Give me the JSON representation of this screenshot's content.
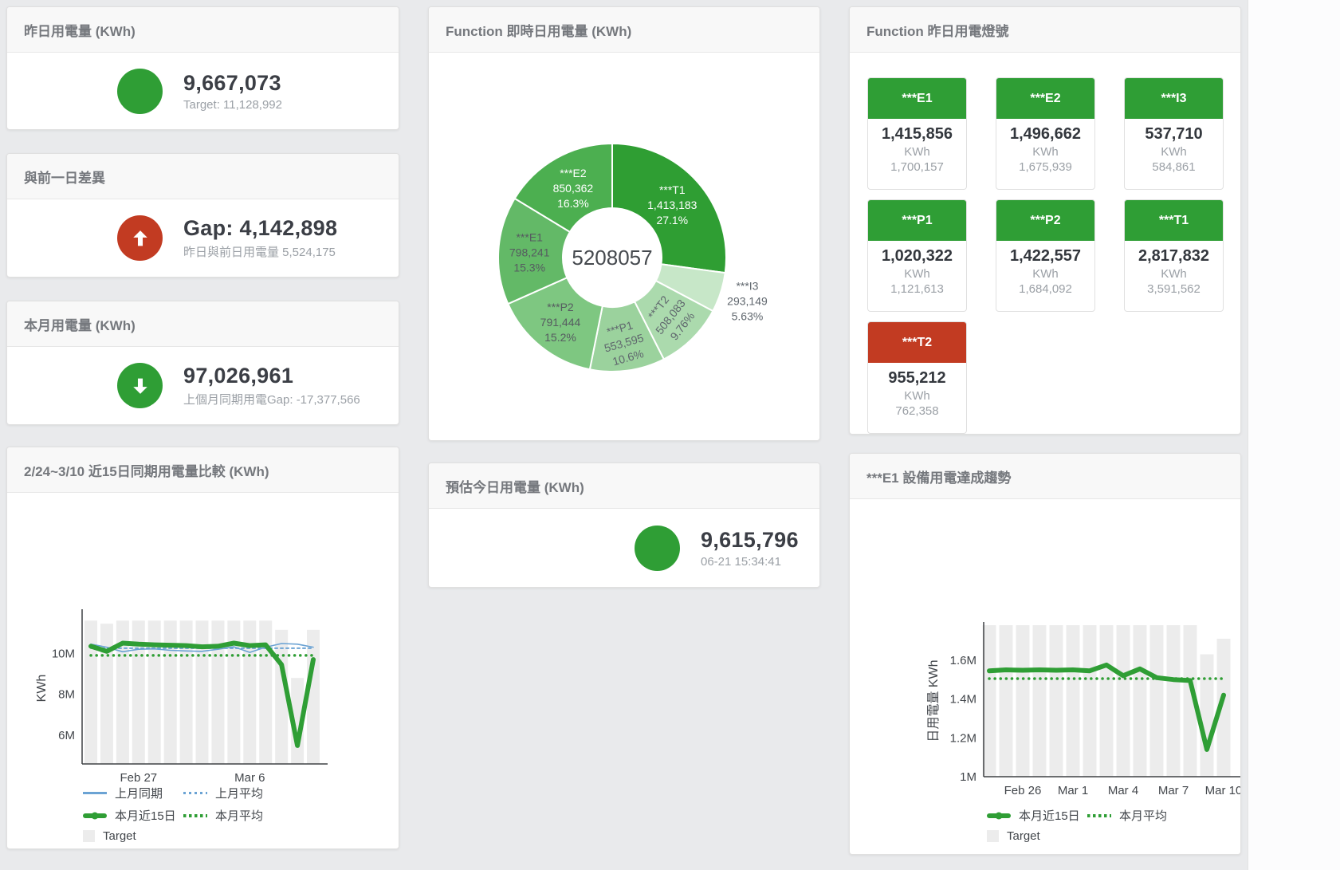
{
  "colors": {
    "green": "#2f9e35",
    "red": "#c23b22",
    "blue": "#6ba3d4",
    "target_bar": "#ececec"
  },
  "cards": {
    "yesterday": {
      "title": "昨日用電量 (KWh)",
      "value": "9,667,073",
      "sub": "Target: 11,128,992"
    },
    "day_gap": {
      "title": "與前一日差異",
      "value": "Gap: 4,142,898",
      "sub": "昨日與前日用電量 5,524,175"
    },
    "month": {
      "title": "本月用電量 (KWh)",
      "value": "97,026,961",
      "sub": "上個月同期用電Gap: -17,377,566"
    },
    "estimate": {
      "title": "預估今日用電量 (KWh)",
      "value": "9,615,796",
      "sub": "06-21 15:34:41"
    },
    "realtime_donut": {
      "title": "Function 即時日用電量 (KWh)"
    },
    "lights": {
      "title": "Function 昨日用電燈號"
    },
    "compare": {
      "title": "2/24~3/10 近15日同期用電量比較 (KWh)"
    },
    "trend": {
      "title": "***E1 設備用電達成趨勢"
    }
  },
  "lights_tiles": [
    {
      "label": "***E1",
      "value": "1,415,856",
      "unit": "KWh",
      "target": "1,700,157",
      "status": "green"
    },
    {
      "label": "***E2",
      "value": "1,496,662",
      "unit": "KWh",
      "target": "1,675,939",
      "status": "green"
    },
    {
      "label": "***I3",
      "value": "537,710",
      "unit": "KWh",
      "target": "584,861",
      "status": "green"
    },
    {
      "label": "***P1",
      "value": "1,020,322",
      "unit": "KWh",
      "target": "1,121,613",
      "status": "green"
    },
    {
      "label": "***P2",
      "value": "1,422,557",
      "unit": "KWh",
      "target": "1,684,092",
      "status": "green"
    },
    {
      "label": "***T1",
      "value": "2,817,832",
      "unit": "KWh",
      "target": "3,591,562",
      "status": "green"
    },
    {
      "label": "***T2",
      "value": "955,212",
      "unit": "KWh",
      "target": "762,358",
      "status": "red"
    }
  ],
  "chart_data": [
    {
      "type": "pie",
      "title": "Function 即時日用電量 (KWh)",
      "center_label": "5208057",
      "legend_position": "none",
      "slices": [
        {
          "label": "***T1",
          "value": 1413183,
          "display": "1,413,183",
          "percent": "27.1%",
          "color": "#2f9e33",
          "text_color": "#ffffff",
          "label_r": 100,
          "rotate": 0,
          "outside": false
        },
        {
          "label": "***I3",
          "value": 293149,
          "display": "293,149",
          "percent": "5.63%",
          "color": "#c7e7c8",
          "text_color": "#5f666d",
          "label_r": 178,
          "rotate": 0,
          "outside": true
        },
        {
          "label": "***T2",
          "value": 508083,
          "display": "508,083",
          "percent": "9.76%",
          "color": "#abdaad",
          "text_color": "#5f666d",
          "label_r": 104,
          "rotate": -52,
          "outside": false
        },
        {
          "label": "***P1",
          "value": 553595,
          "display": "553,595",
          "percent": "10.6%",
          "color": "#9bd29d",
          "text_color": "#5f666d",
          "label_r": 108,
          "rotate": -16,
          "outside": false
        },
        {
          "label": "***P2",
          "value": 791444,
          "display": "791,444",
          "percent": "15.2%",
          "color": "#7ec781",
          "text_color": "#565b60",
          "label_r": 104,
          "rotate": 0,
          "outside": false
        },
        {
          "label": "***E1",
          "value": 798241,
          "display": "798,241",
          "percent": "15.3%",
          "color": "#63b967",
          "text_color": "#565b60",
          "label_r": 104,
          "rotate": 0,
          "outside": false
        },
        {
          "label": "***E2",
          "value": 850362,
          "display": "850,362",
          "percent": "16.3%",
          "color": "#4caf50",
          "text_color": "#ffffff",
          "label_r": 100,
          "rotate": 0,
          "outside": false
        }
      ]
    },
    {
      "type": "line",
      "id": "compare",
      "title": "2/24~3/10 近15日同期用電量比較 (KWh)",
      "ylabel": "KWh",
      "value_unit": "millions of KWh",
      "ylim": [
        4.6,
        12
      ],
      "grid": false,
      "y_ticks": [
        {
          "value": 6,
          "label": "6M"
        },
        {
          "value": 8,
          "label": "8M"
        },
        {
          "value": 10,
          "label": "10M"
        }
      ],
      "x_ticks": [
        {
          "index": 3,
          "label": "Feb 27"
        },
        {
          "index": 10,
          "label": "Mar 6"
        }
      ],
      "target_name": "Target",
      "target_bars": [
        11.6,
        11.45,
        11.6,
        11.6,
        11.6,
        11.6,
        11.6,
        11.6,
        11.6,
        11.6,
        11.6,
        11.6,
        11.15,
        8.8,
        11.15
      ],
      "series": [
        {
          "name": "上月平均",
          "style": "blue-dashed",
          "values": 10.25
        },
        {
          "name": "上月同期",
          "style": "blue-solid",
          "values": [
            10.45,
            10.3,
            10.08,
            10.2,
            10.22,
            10.15,
            10.12,
            10.1,
            10.2,
            10.32,
            10.05,
            10.3,
            10.48,
            10.45,
            10.3
          ]
        },
        {
          "name": "本月平均",
          "style": "green-dotted",
          "values": 9.9
        },
        {
          "name": "本月近15日",
          "style": "green-thick",
          "values": [
            10.35,
            10.1,
            10.5,
            10.45,
            10.42,
            10.4,
            10.38,
            10.32,
            10.35,
            10.5,
            10.38,
            10.42,
            9.45,
            5.5,
            9.7
          ]
        }
      ],
      "legend_rows": [
        [
          {
            "label": "上月同期",
            "style": "blue-solid"
          },
          {
            "label": "上月平均",
            "style": "blue-dashed"
          }
        ],
        [
          {
            "label": "本月近15日",
            "style": "green-thick"
          },
          {
            "label": "本月平均",
            "style": "green-dotted"
          }
        ],
        [
          {
            "label": "Target",
            "style": "target"
          }
        ]
      ]
    },
    {
      "type": "line",
      "id": "trend",
      "title": "***E1 設備用電達成趨勢",
      "ylabel": "日用電量 KWh",
      "value_unit": "millions of KWh",
      "ylim": [
        1.0,
        1.78
      ],
      "grid": false,
      "y_ticks": [
        {
          "value": 1,
          "label": "1M"
        },
        {
          "value": 1.2,
          "label": "1.2M"
        },
        {
          "value": 1.4,
          "label": "1.4M"
        },
        {
          "value": 1.6,
          "label": "1.6M"
        }
      ],
      "x_ticks": [
        {
          "index": 2,
          "label": "Feb 26"
        },
        {
          "index": 5,
          "label": "Mar 1"
        },
        {
          "index": 8,
          "label": "Mar 4"
        },
        {
          "index": 11,
          "label": "Mar 7"
        },
        {
          "index": 14,
          "label": "Mar 10"
        }
      ],
      "target_name": "Target",
      "target_bars": [
        1.78,
        1.78,
        1.78,
        1.78,
        1.78,
        1.78,
        1.78,
        1.78,
        1.78,
        1.78,
        1.78,
        1.78,
        1.78,
        1.63,
        1.71
      ],
      "series": [
        {
          "name": "本月平均",
          "style": "green-dotted",
          "values": 1.505
        },
        {
          "name": "本月近15日",
          "style": "green-thick",
          "values": [
            1.545,
            1.55,
            1.548,
            1.55,
            1.548,
            1.55,
            1.545,
            1.575,
            1.52,
            1.555,
            1.51,
            1.5,
            1.495,
            1.14,
            1.42
          ]
        }
      ],
      "legend_rows": [
        [
          {
            "label": "本月近15日",
            "style": "green-thick"
          },
          {
            "label": "本月平均",
            "style": "green-dotted"
          }
        ],
        [
          {
            "label": "Target",
            "style": "target"
          }
        ]
      ]
    }
  ]
}
